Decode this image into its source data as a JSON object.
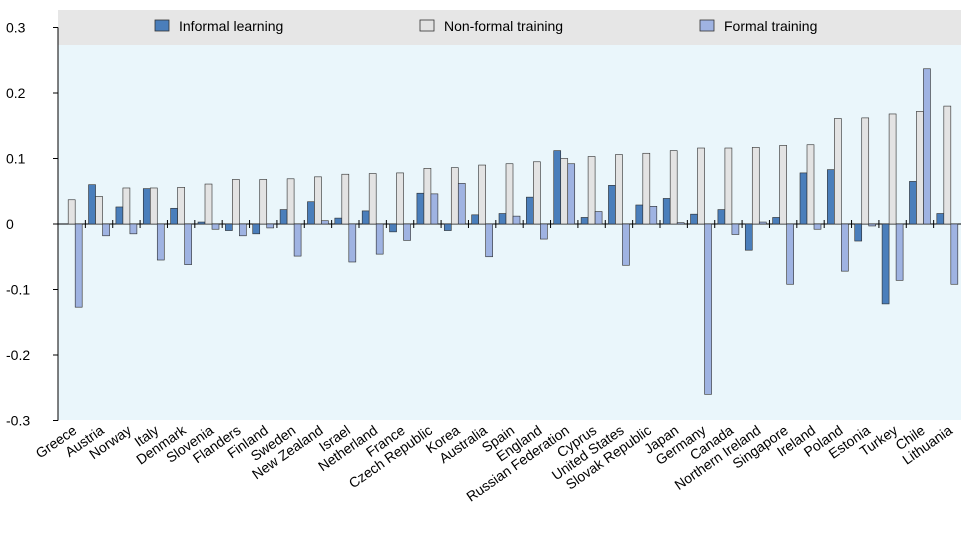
{
  "chart_data": {
    "type": "bar",
    "categories": [
      "Greece",
      "Austria",
      "Norway",
      "Italy",
      "Denmark",
      "Slovenia",
      "Flanders",
      "Finland",
      "Sweden",
      "New Zealand",
      "Israel",
      "Netherland",
      "France",
      "Czech Republic",
      "Korea",
      "Australia",
      "Spain",
      "England",
      "Russian Federation",
      "Cyprus",
      "United States",
      "Slovak Republic",
      "Japan",
      "Germany",
      "Canada",
      "Northern Ireland",
      "Singapore",
      "Ireland",
      "Poland",
      "Estonia",
      "Turkey",
      "Chile",
      "Lithuania"
    ],
    "series": [
      {
        "name": "Informal learning",
        "color": "#4a7ebb",
        "values": [
          0.0,
          0.06,
          0.026,
          0.054,
          0.024,
          0.003,
          -0.01,
          -0.015,
          0.022,
          0.034,
          0.009,
          0.02,
          -0.012,
          0.047,
          -0.01,
          0.014,
          0.016,
          0.041,
          0.112,
          0.01,
          0.059,
          0.029,
          0.039,
          0.015,
          0.022,
          -0.04,
          0.01,
          0.078,
          0.083,
          -0.026,
          -0.122,
          0.065,
          0.016
        ]
      },
      {
        "name": "Non-formal training",
        "color": "#e3e3e3",
        "values": [
          0.037,
          0.042,
          0.055,
          0.055,
          0.056,
          0.061,
          0.068,
          0.068,
          0.069,
          0.072,
          0.076,
          0.077,
          0.078,
          0.085,
          0.086,
          0.09,
          0.092,
          0.095,
          0.1,
          0.103,
          0.106,
          0.108,
          0.112,
          0.116,
          0.116,
          0.117,
          0.12,
          0.121,
          0.161,
          0.162,
          0.168,
          0.172,
          0.18
        ]
      },
      {
        "name": "Formal training",
        "color": "#9fb3e2",
        "values": [
          -0.127,
          -0.018,
          -0.015,
          -0.055,
          -0.062,
          -0.008,
          -0.018,
          -0.006,
          -0.049,
          0.005,
          -0.058,
          -0.046,
          -0.025,
          0.046,
          0.062,
          -0.05,
          0.012,
          -0.023,
          0.092,
          0.019,
          -0.063,
          0.027,
          0.002,
          -0.26,
          -0.016,
          0.003,
          -0.092,
          -0.008,
          -0.072,
          -0.003,
          -0.086,
          0.237,
          -0.092
        ]
      }
    ],
    "ylim": [
      -0.3,
      0.3
    ],
    "yticks": [
      -0.3,
      -0.2,
      -0.1,
      0,
      0.1,
      0.2,
      0.3
    ]
  }
}
